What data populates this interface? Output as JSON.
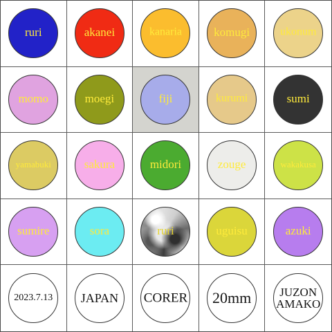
{
  "swatches": [
    {
      "label": "ruri",
      "color": "#2222c8",
      "label_color": "#ffeb3b"
    },
    {
      "label": "akanei",
      "color": "#f02b14",
      "label_color": "#ffeb3b"
    },
    {
      "label": "kanaria",
      "color": "#fbbd2e",
      "label_color": "#ffeb3b"
    },
    {
      "label": "komugi",
      "color": "#e9b25a",
      "label_color": "#ffeb3b"
    },
    {
      "label": "ukonum",
      "color": "#ecd38a",
      "label_color": "#ffeb3b"
    },
    {
      "label": "momo",
      "color": "#e0a3e0",
      "label_color": "#ffeb3b"
    },
    {
      "label": "moegi",
      "color": "#8f9a1b",
      "label_color": "#ffeb3b"
    },
    {
      "label": "fiji",
      "color": "#a7acea",
      "label_color": "#ffeb3b"
    },
    {
      "label": "kurumi",
      "color": "#e6c98a",
      "label_color": "#ffeb3b"
    },
    {
      "label": "sumi",
      "color": "#333333",
      "label_color": "#ffeb3b"
    },
    {
      "label": "yamabuki",
      "color": "#dccb63",
      "label_color": "#ffeb3b"
    },
    {
      "label": "sakura",
      "color": "#f7aee9",
      "label_color": "#ffeb3b"
    },
    {
      "label": "midori",
      "color": "#4bab30",
      "label_color": "#ffeb3b"
    },
    {
      "label": "zouge",
      "color": "#ededea",
      "label_color": "#ffeb3b"
    },
    {
      "label": "wakakusa",
      "color": "#cde247",
      "label_color": "#ffeb3b"
    },
    {
      "label": "sumire",
      "color": "#d7a0f1",
      "label_color": "#ffeb3b"
    },
    {
      "label": "sora",
      "color": "#6cecf2",
      "label_color": "#ffeb3b"
    },
    {
      "label": "ruri",
      "color": "pearl",
      "label_color": "#e8d630"
    },
    {
      "label": "uguisu",
      "color": "#dbd63a",
      "label_color": "#ffeb3b"
    },
    {
      "label": "azuki",
      "color": "#b77dee",
      "label_color": "#ffeb3b"
    }
  ],
  "stamps": [
    {
      "text": "2023.7.13",
      "color": "#ffffff"
    },
    {
      "text": "JAPAN",
      "color": "#ffffff"
    },
    {
      "text": "CORER",
      "color": "#ffffff"
    },
    {
      "text": "20mm",
      "color": "#ffffff"
    },
    {
      "text": "JUZON\nAMAKO",
      "color": "#ffffff"
    }
  ],
  "selected_label": "fiji"
}
